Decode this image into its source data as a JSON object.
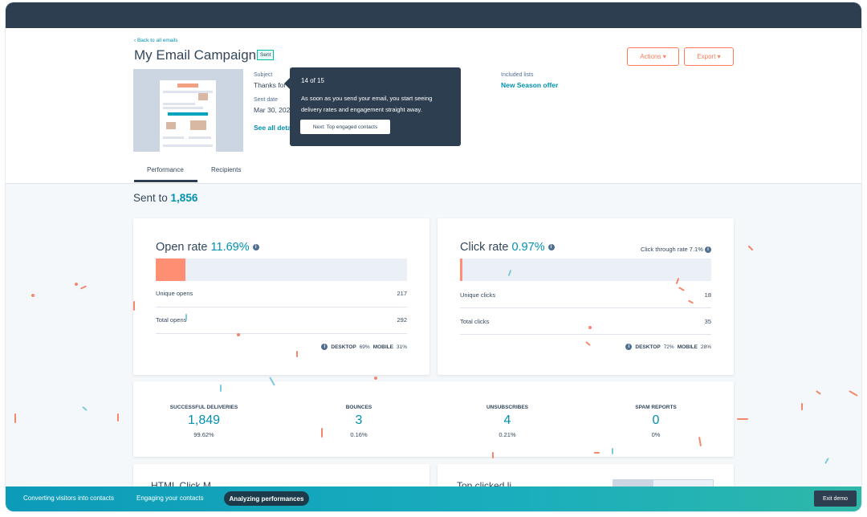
{
  "email": {
    "back_link": "‹ Back to all emails",
    "title": "My Email Campaign",
    "status": "Sent",
    "subject_label": "Subject",
    "subject_value": "Thanks for s",
    "sent_date_label": "Sent date",
    "sent_date_value": "Mar 30, 202",
    "see_details": "See all details",
    "included_lists_label": "Included lists",
    "included_lists_value": "New Season offer"
  },
  "actions": {
    "actions_label": "Actions ▾",
    "export_label": "Export ▾"
  },
  "tabs": [
    {
      "label": "Performance"
    },
    {
      "label": "Recipients"
    }
  ],
  "tooltip": {
    "step": "14 of 15",
    "body": "As soon as you send your email, you start seeing delivery rates and engagement straight away.",
    "next": "Next: Top engaged contacts"
  },
  "summary": {
    "prefix": "Sent to",
    "count": "1,856"
  },
  "open_card": {
    "title": "Open rate",
    "rate": "11.69%",
    "rate_fraction": 0.1169,
    "rows": [
      {
        "label": "Unique opens",
        "value": "217"
      },
      {
        "label": "Total opens",
        "value": "292"
      }
    ],
    "desktop_label": "DESKTOP",
    "desktop_value": "69%",
    "mobile_label": "MOBILE",
    "mobile_value": "31%"
  },
  "click_card": {
    "title": "Click rate",
    "rate": "0.97%",
    "rate_fraction": 0.0097,
    "ctr": "Click through rate 7.1%",
    "rows": [
      {
        "label": "Unique clicks",
        "value": "18"
      },
      {
        "label": "Total clicks",
        "value": "35"
      }
    ],
    "desktop_label": "DESKTOP",
    "desktop_value": "72%",
    "mobile_label": "MOBILE",
    "mobile_value": "28%"
  },
  "stats": [
    {
      "label": "SUCCESSFUL DELIVERIES",
      "value": "1,849",
      "sub": "99.62%"
    },
    {
      "label": "BOUNCES",
      "value": "3",
      "sub": "0.16%"
    },
    {
      "label": "UNSUBSCRIBES",
      "value": "4",
      "sub": "0.21%"
    },
    {
      "label": "SPAM REPORTS",
      "value": "0",
      "sub": "0%"
    }
  ],
  "peek": {
    "left_title": "HTML Click M",
    "right_title": "Top clicked li"
  },
  "bottom_nav": {
    "items": [
      "Converting visitors into contacts",
      "Engaging your contacts",
      "Analyzing performances"
    ],
    "exit": "Exit demo"
  },
  "colors": {
    "accent": "#0091ae",
    "brand_orange": "#ff7a59",
    "nav_dark": "#2d3e50",
    "teal_bar": "#1aaebd"
  }
}
